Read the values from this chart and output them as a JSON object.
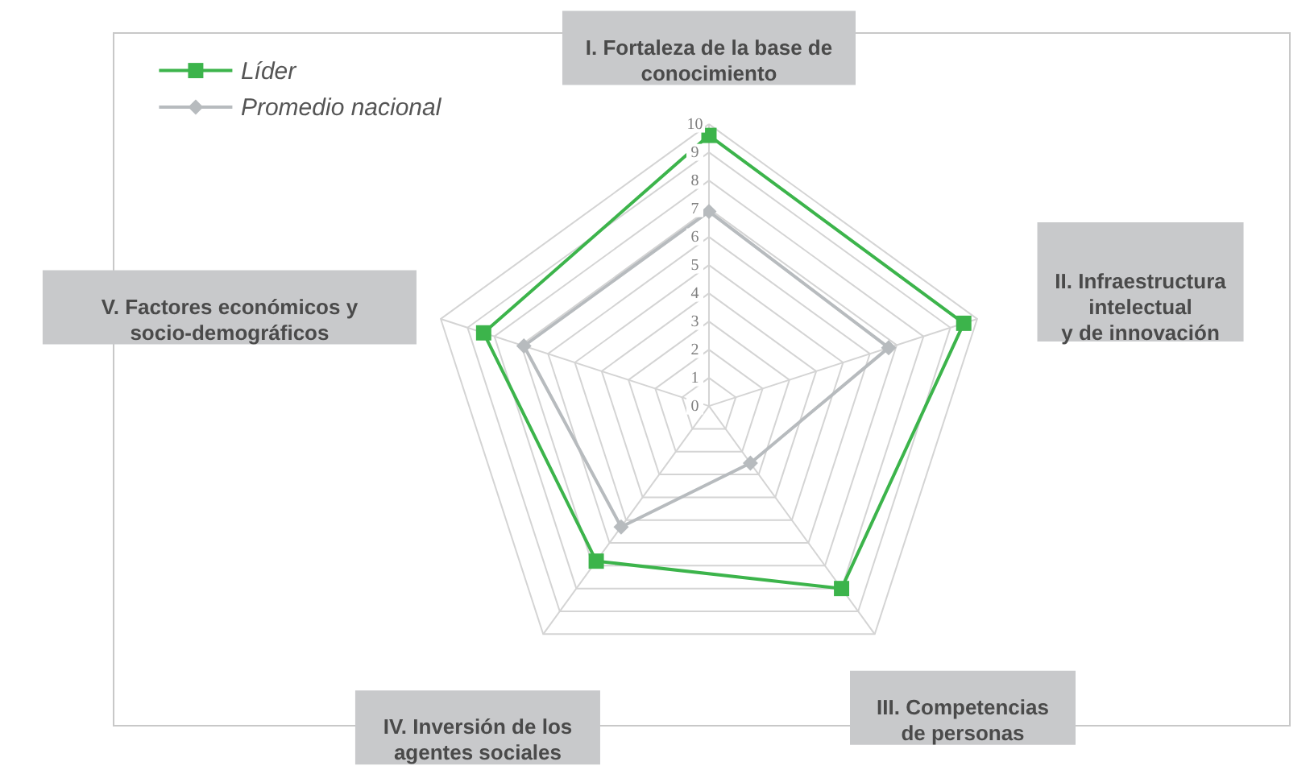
{
  "chart_data": {
    "type": "radar",
    "categories": [
      "I. Fortaleza de la base de\nconocimiento",
      "II. Infraestructura\nintelectual\ny de innovación",
      "III. Competencias\nde personas",
      "IV. Inversión de los\nagentes sociales",
      "V. Factores económicos y\nsocio-demográficos"
    ],
    "series": [
      {
        "name": "Líder",
        "color": "#3cb44b",
        "marker": "square",
        "values": [
          9.6,
          9.5,
          8.0,
          6.8,
          8.4
        ]
      },
      {
        "name": "Promedio nacional",
        "color": "#b7bbbe",
        "marker": "diamond",
        "values": [
          6.9,
          6.7,
          2.5,
          5.3,
          6.9
        ]
      }
    ],
    "ylim": [
      0,
      10
    ],
    "yticks": [
      0,
      1,
      2,
      3,
      4,
      5,
      6,
      7,
      8,
      9,
      10
    ],
    "grid": true,
    "legend": "top left"
  }
}
